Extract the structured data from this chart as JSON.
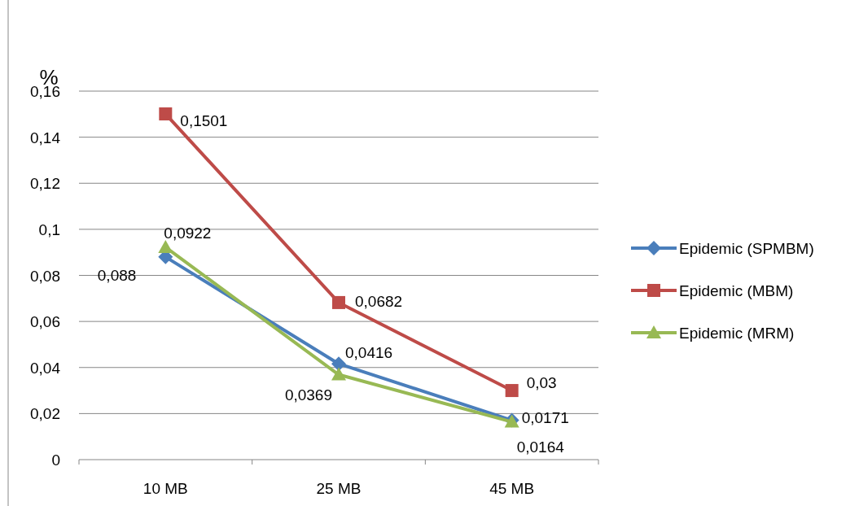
{
  "chart_data": {
    "type": "line",
    "ylabel": "%",
    "categories": [
      "10 MB",
      "25 MB",
      "45 MB"
    ],
    "series": [
      {
        "name": "Epidemic (SPMBM)",
        "color": "#4a7ebb",
        "marker": "diamond",
        "values": [
          0.088,
          0.0416,
          0.0171
        ],
        "value_labels": [
          "0,088",
          "0,0416",
          "0,0171"
        ]
      },
      {
        "name": "Epidemic (MBM)",
        "color": "#be4b48",
        "marker": "square",
        "values": [
          0.1501,
          0.0682,
          0.03
        ],
        "value_labels": [
          "0,1501",
          "0,0682",
          "0,03"
        ]
      },
      {
        "name": "Epidemic (MRM)",
        "color": "#98b954",
        "marker": "triangle",
        "values": [
          0.0922,
          0.0369,
          0.0164
        ],
        "value_labels": [
          "0,0922",
          "0,0369",
          "0,0164"
        ]
      }
    ],
    "ylim": [
      0,
      0.16
    ],
    "yticks": [
      {
        "value": 0,
        "label": "0"
      },
      {
        "value": 0.02,
        "label": "0,02"
      },
      {
        "value": 0.04,
        "label": "0,04"
      },
      {
        "value": 0.06,
        "label": "0,06"
      },
      {
        "value": 0.08,
        "label": "0,08"
      },
      {
        "value": 0.1,
        "label": "0,1"
      },
      {
        "value": 0.12,
        "label": "0,12"
      },
      {
        "value": 0.14,
        "label": "0,14"
      },
      {
        "value": 0.16,
        "label": "0,16"
      }
    ],
    "grid": "y",
    "legend": "right",
    "line_style": "solid"
  }
}
